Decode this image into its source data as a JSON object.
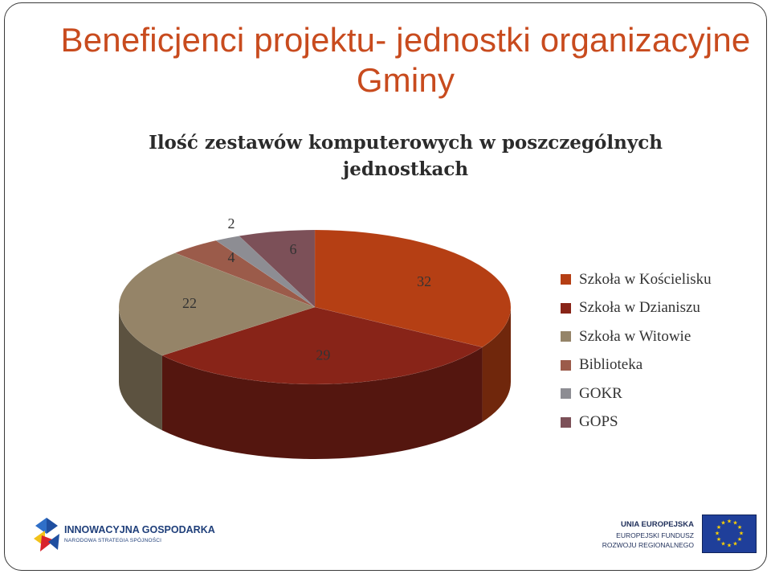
{
  "slide": {
    "title": "Beneficjenci projektu- jednostki organizacyjne Gminy"
  },
  "chart_data": {
    "type": "pie",
    "title": "Ilość zestawów komputerowych w poszczególnych jednostkach",
    "slices": [
      {
        "label": "Szkoła w Kościelisku",
        "value": 32,
        "color": "#b53f14"
      },
      {
        "label": "Szkoła w Dzianiszu",
        "value": 29,
        "color": "#882418"
      },
      {
        "label": "Szkoła w Witowie",
        "value": 22,
        "color": "#958468"
      },
      {
        "label": "Biblioteka",
        "value": 4,
        "color": "#9b5b4a"
      },
      {
        "label": "GOKR",
        "value": 2,
        "color": "#8d8d93"
      },
      {
        "label": "GOPS",
        "value": 6,
        "color": "#7c5058"
      }
    ],
    "legend_position": "right"
  },
  "logos": {
    "left": {
      "name": "INNOWACYJNA GOSPODARKA",
      "subtitle": "NARODOWA STRATEGIA SPÓJNOŚCI"
    },
    "right": {
      "line1": "UNIA EUROPEJSKA",
      "line2": "EUROPEJSKI FUNDUSZ",
      "line3": "ROZWOJU REGIONALNEGO"
    }
  }
}
